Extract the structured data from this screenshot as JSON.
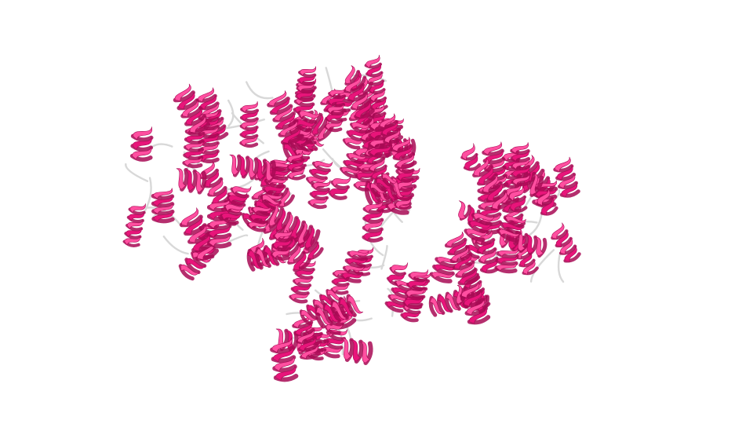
{
  "scene": {
    "subject": "protein-cartoon",
    "representation": "cartoon",
    "style": "alpha-helical protein ribbon with coil loops",
    "background_color": "#ffffff",
    "colors": {
      "helix": "#e8157a",
      "helix_dark": "#a80a55",
      "helix_light": "#ff4fa0",
      "coil": "#d8d8d8",
      "coil_shadow": "#a9a9a9"
    },
    "secondary_structure": [
      "helix",
      "coil"
    ]
  }
}
